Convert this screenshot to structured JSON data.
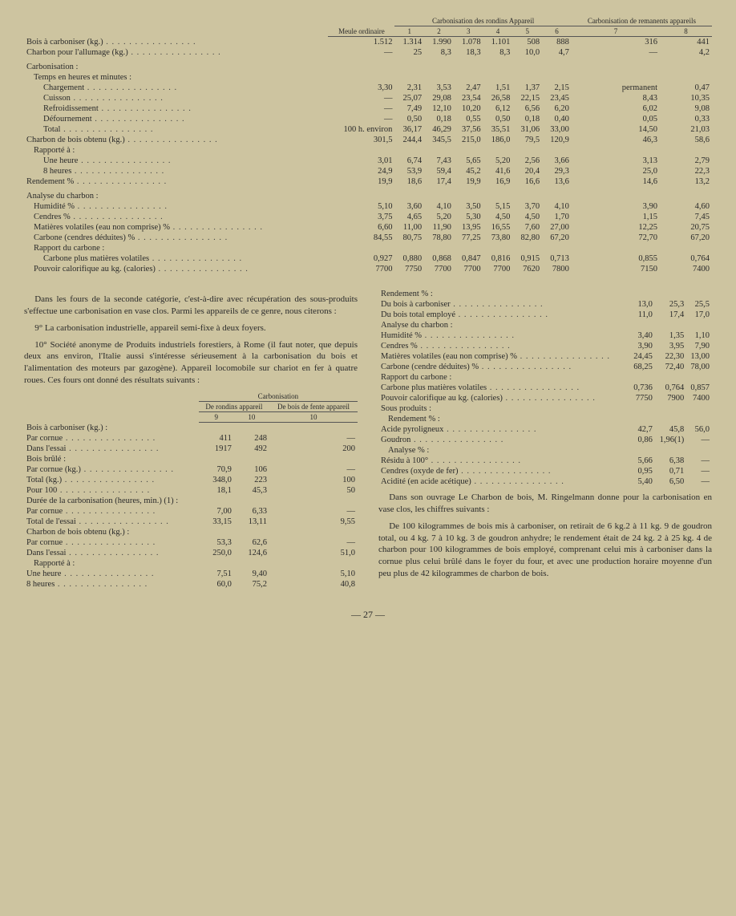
{
  "mainTable": {
    "headers": {
      "meule": "Meule\nordinaire",
      "group1": "Carbonisation des rondins\nAppareil",
      "group2": "Carbonisation\nde remanents\nappareils",
      "cols": [
        "1",
        "2",
        "3",
        "4",
        "5",
        "6",
        "7",
        "8"
      ]
    },
    "rows": [
      {
        "l": "Bois à carboniser (kg.)",
        "v": [
          "1.512",
          "1.314",
          "1.990",
          "1.078",
          "1.101",
          "508",
          "888",
          "316",
          "441"
        ]
      },
      {
        "l": "Charbon pour l'allumage (kg.)",
        "v": [
          "—",
          "25",
          "8,3",
          "18,3",
          "8,3",
          "10,0",
          "4,7",
          "—",
          "4,2"
        ]
      },
      {
        "sec": "Carbonisation :"
      },
      {
        "sub": "Temps en heures et minutes :"
      },
      {
        "l": "Chargement",
        "i": 2,
        "v": [
          "3,30",
          "2,31",
          "3,53",
          "2,47",
          "1,51",
          "1,37",
          "2,15",
          "permanent",
          "0,47"
        ]
      },
      {
        "l": "Cuisson",
        "i": 2,
        "v": [
          "—",
          "25,07",
          "29,08",
          "23,54",
          "26,58",
          "22,15",
          "23,45",
          "8,43",
          "10,35"
        ]
      },
      {
        "l": "Refroidissement",
        "i": 2,
        "v": [
          "—",
          "7,49",
          "12,10",
          "10,20",
          "6,12",
          "6,56",
          "6,20",
          "6,02",
          "9,08"
        ]
      },
      {
        "l": "Défournement",
        "i": 2,
        "v": [
          "—",
          "0,50",
          "0,18",
          "0,55",
          "0,50",
          "0,18",
          "0,40",
          "0,05",
          "0,33"
        ]
      },
      {
        "l": "Total",
        "i": 2,
        "v": [
          "100 h.\nenviron",
          "36,17",
          "46,29",
          "37,56",
          "35,51",
          "31,06",
          "33,00",
          "14,50",
          "21,03"
        ]
      },
      {
        "l": "Charbon de bois obtenu (kg.)",
        "v": [
          "301,5",
          "244,4",
          "345,5",
          "215,0",
          "186,0",
          "79,5",
          "120,9",
          "46,3",
          "58,6"
        ]
      },
      {
        "sub": "Rapporté à :"
      },
      {
        "l": "Une heure",
        "i": 2,
        "v": [
          "3,01",
          "6,74",
          "7,43",
          "5,65",
          "5,20",
          "2,56",
          "3,66",
          "3,13",
          "2,79"
        ]
      },
      {
        "l": "8 heures",
        "i": 2,
        "v": [
          "24,9",
          "53,9",
          "59,4",
          "45,2",
          "41,6",
          "20,4",
          "29,3",
          "25,0",
          "22,3"
        ]
      },
      {
        "l": "Rendement %",
        "v": [
          "19,9",
          "18,6",
          "17,4",
          "19,9",
          "16,9",
          "16,6",
          "13,6",
          "14,6",
          "13,2"
        ]
      },
      {
        "sec": "Analyse du charbon :"
      },
      {
        "l": "Humidité %",
        "i": 1,
        "v": [
          "5,10",
          "3,60",
          "4,10",
          "3,50",
          "5,15",
          "3,70",
          "4,10",
          "3,90",
          "4,60"
        ]
      },
      {
        "l": "Cendres %",
        "i": 1,
        "v": [
          "3,75",
          "4,65",
          "5,20",
          "5,30",
          "4,50",
          "4,50",
          "1,70",
          "1,15",
          "7,45"
        ]
      },
      {
        "l": "Matières volatiles (eau non comprise) %",
        "i": 1,
        "v": [
          "6,60",
          "11,00",
          "11,90",
          "13,95",
          "16,55",
          "7,60",
          "27,00",
          "12,25",
          "20,75"
        ]
      },
      {
        "l": "Carbone (cendres déduites) %",
        "i": 1,
        "v": [
          "84,55",
          "80,75",
          "78,80",
          "77,25",
          "73,80",
          "82,80",
          "67,20",
          "72,70",
          "67,20"
        ]
      },
      {
        "sub": "Rapport du carbone :"
      },
      {
        "l": "Carbone plus matières volatiles",
        "i": 2,
        "v": [
          "0,927",
          "0,880",
          "0,868",
          "0,847",
          "0,816",
          "0,915",
          "0,713",
          "0,855",
          "0,764"
        ]
      },
      {
        "l": "Pouvoir calorifique au kg. (calories)",
        "i": 1,
        "v": [
          "7700",
          "7750",
          "7700",
          "7700",
          "7700",
          "7620",
          "7800",
          "7150",
          "7400"
        ]
      }
    ]
  },
  "para1": "Dans les fours de la seconde catégorie, c'est-à-dire avec récupération des sous-produits s'effectue une carbonisation en vase clos. Parmi les appareils de ce genre, nous citerons :",
  "para2": "9° La carbonisation industrielle, appareil semi-fixe à deux foyers.",
  "para3": "10° Société anonyme de Produits industriels forestiers, à Rome (il faut noter, que depuis deux ans environ, l'Italie aussi s'intéresse sérieusement à la carbonisation du bois et l'alimentation des moteurs par gazogène). Appareil locomobile sur chariot en fer à quatre roues. Ces fours ont donné des résultats suivants :",
  "subLeft": {
    "headers": {
      "g1": "Carbonisation",
      "s1": "De rondins\nappareil",
      "s2": "De bois\nde fente\nappareil",
      "c": [
        "9",
        "10",
        "10"
      ]
    },
    "rows": [
      {
        "sec": "Bois à carboniser (kg.) :"
      },
      {
        "l": "Par cornue",
        "v": [
          "411",
          "248",
          "—"
        ]
      },
      {
        "l": "Dans l'essai",
        "v": [
          "1917",
          "492",
          "200"
        ]
      },
      {
        "sec": "Bois brûlé :"
      },
      {
        "l": "Par cornue (kg.)",
        "v": [
          "70,9",
          "106",
          "—"
        ]
      },
      {
        "l": "Total (kg.)",
        "v": [
          "348,0",
          "223",
          "100"
        ]
      },
      {
        "l": "Pour 100",
        "v": [
          "18,1",
          "45,3",
          "50"
        ]
      },
      {
        "sec": "Durée de la carbonisation (heures, min.) (1) :"
      },
      {
        "l": "Par cornue",
        "v": [
          "7,00",
          "6,33",
          "—"
        ]
      },
      {
        "l": "Total de l'essai",
        "v": [
          "33,15",
          "13,11",
          "9,55"
        ]
      },
      {
        "sec": "Charbon de bois obtenu (kg.) :"
      },
      {
        "l": "Par cornue",
        "v": [
          "53,3",
          "62,6",
          "—"
        ]
      },
      {
        "l": "Dans l'essai",
        "v": [
          "250,0",
          "124,6",
          "51,0"
        ]
      },
      {
        "sub": "Rapporté à :"
      },
      {
        "l": "Une heure",
        "v": [
          "7,51",
          "9,40",
          "5,10"
        ]
      },
      {
        "l": "8 heures",
        "v": [
          "60,0",
          "75,2",
          "40,8"
        ]
      }
    ]
  },
  "subRight": {
    "rows": [
      {
        "sec": "Rendement % :"
      },
      {
        "l": "Du bois à carboniser",
        "v": [
          "13,0",
          "25,3",
          "25,5"
        ]
      },
      {
        "l": "Du bois total employé",
        "v": [
          "11,0",
          "17,4",
          "17,0"
        ]
      },
      {
        "sec": "Analyse du charbon :"
      },
      {
        "l": "Humidité %",
        "v": [
          "3,40",
          "1,35",
          "1,10"
        ]
      },
      {
        "l": "Cendres %",
        "v": [
          "3,90",
          "3,95",
          "7,90"
        ]
      },
      {
        "l": "Matières volatiles (eau non comprise) %",
        "v": [
          "24,45",
          "22,30",
          "13,00"
        ]
      },
      {
        "l": "Carbone (cendre déduites) %",
        "v": [
          "68,25",
          "72,40",
          "78,00"
        ]
      },
      {
        "sec": "Rapport du carbone :"
      },
      {
        "l": "Carbone plus matières volatiles",
        "v": [
          "0,736",
          "0,764",
          "0,857"
        ]
      },
      {
        "l": "Pouvoir calorifique au kg. (calories)",
        "v": [
          "7750",
          "7900",
          "7400"
        ]
      },
      {
        "sec": "Sous produits :"
      },
      {
        "sub": "Rendement % :"
      },
      {
        "l": "Acide pyroligneux",
        "v": [
          "42,7",
          "45,8",
          "56,0"
        ]
      },
      {
        "l": "Goudron",
        "v": [
          "0,86",
          "1,96(1)",
          "—"
        ]
      },
      {
        "sub": "Analyse % :"
      },
      {
        "l": "Résidu à 100°",
        "v": [
          "5,66",
          "6,38",
          "—"
        ]
      },
      {
        "l": "Cendres (oxyde de fer)",
        "v": [
          "0,95",
          "0,71",
          "—"
        ]
      },
      {
        "l": "Acidité (en acide acétique)",
        "v": [
          "5,40",
          "6,50",
          "—"
        ]
      }
    ]
  },
  "para4": "Dans son ouvrage Le Charbon de bois, M. Ringelmann donne pour la carbonisation en vase clos, les chiffres suivants :",
  "para5": "De 100 kilogrammes de bois mis à carboniser, on retirait de 6 kg.2 à 11 kg. 9 de goudron total, ou 4 kg. 7 à 10 kg. 3 de goudron anhydre; le rendement était de 24 kg. 2 à 25 kg. 4 de charbon pour 100 kilogrammes de bois employé, comprenant celui mis à carboniser dans la cornue plus celui brûlé dans le foyer du four, et avec une production horaire moyenne d'un peu plus de 42 kilogrammes de charbon de bois.",
  "pageNum": "— 27 —"
}
